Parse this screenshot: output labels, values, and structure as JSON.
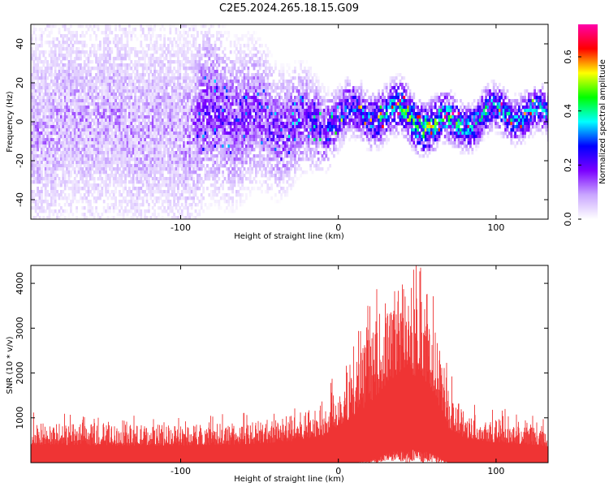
{
  "title": "C2E5.2024.265.18.15.G09",
  "colors": {
    "snr_line": "#ef3434",
    "axes": "#000000",
    "background": "#ffffff"
  },
  "chart_data": [
    {
      "type": "heatmap",
      "xlabel": "Height of straight line (km)",
      "ylabel": "Frequency (Hz)",
      "xlim": [
        -195,
        133
      ],
      "ylim": [
        -50,
        50
      ],
      "x_ticks": [
        -100,
        0,
        100
      ],
      "y_ticks": [
        -40,
        -20,
        0,
        20,
        40
      ],
      "colorbar": {
        "label": "Normalized spectral amplitude",
        "range": [
          0.0,
          0.72
        ],
        "ticks": [
          "0.0",
          "0.2",
          "0.4",
          "0.6"
        ],
        "colormap": [
          "#ffffff",
          "#c9a6ff",
          "#7b00ff",
          "#0000ff",
          "#00ffff",
          "#00ff00",
          "#ffff00",
          "#ff0000",
          "#ff00aa"
        ]
      },
      "band": [
        {
          "x": -195,
          "center": 0,
          "halfwidth": 50,
          "amplitude": 0.08
        },
        {
          "x": -150,
          "center": 0,
          "halfwidth": 50,
          "amplitude": 0.08
        },
        {
          "x": -100,
          "center": 0,
          "halfwidth": 50,
          "amplitude": 0.08
        },
        {
          "x": -85,
          "center": 2,
          "halfwidth": 45,
          "amplitude": 0.12
        },
        {
          "x": -50,
          "center": 0,
          "halfwidth": 35,
          "amplitude": 0.12
        },
        {
          "x": -20,
          "center": 2,
          "halfwidth": 25,
          "amplitude": 0.14
        },
        {
          "x": 0,
          "center": 3,
          "halfwidth": 15,
          "amplitude": 0.18
        },
        {
          "x": 20,
          "center": 2,
          "halfwidth": 14,
          "amplitude": 0.22
        },
        {
          "x": 40,
          "center": 4,
          "halfwidth": 14,
          "amplitude": 0.28
        },
        {
          "x": 60,
          "center": 2,
          "halfwidth": 13,
          "amplitude": 0.32
        },
        {
          "x": 80,
          "center": 3,
          "halfwidth": 12,
          "amplitude": 0.25
        },
        {
          "x": 100,
          "center": 3,
          "halfwidth": 12,
          "amplitude": 0.25
        },
        {
          "x": 133,
          "center": 2,
          "halfwidth": 12,
          "amplitude": 0.22
        }
      ]
    },
    {
      "type": "line",
      "xlabel": "Height of straight line (km)",
      "ylabel": "SNR (10 * v/v)",
      "xlim": [
        -195,
        133
      ],
      "ylim": [
        0,
        4400
      ],
      "x_ticks": [
        -100,
        0,
        100
      ],
      "y_ticks": [
        1000,
        2000,
        3000,
        4000
      ],
      "envelope": {
        "x": [
          -195,
          -150,
          -100,
          -60,
          -30,
          -10,
          0,
          10,
          20,
          30,
          40,
          50,
          60,
          70,
          80,
          100,
          120,
          133
        ],
        "low": [
          0,
          0,
          0,
          0,
          0,
          0,
          0,
          0,
          50,
          200,
          300,
          300,
          200,
          0,
          0,
          0,
          0,
          0
        ],
        "high": [
          900,
          850,
          850,
          900,
          1050,
          1300,
          1800,
          2300,
          2900,
          3600,
          4200,
          3900,
          3200,
          1700,
          1200,
          1000,
          900,
          800
        ]
      }
    }
  ]
}
